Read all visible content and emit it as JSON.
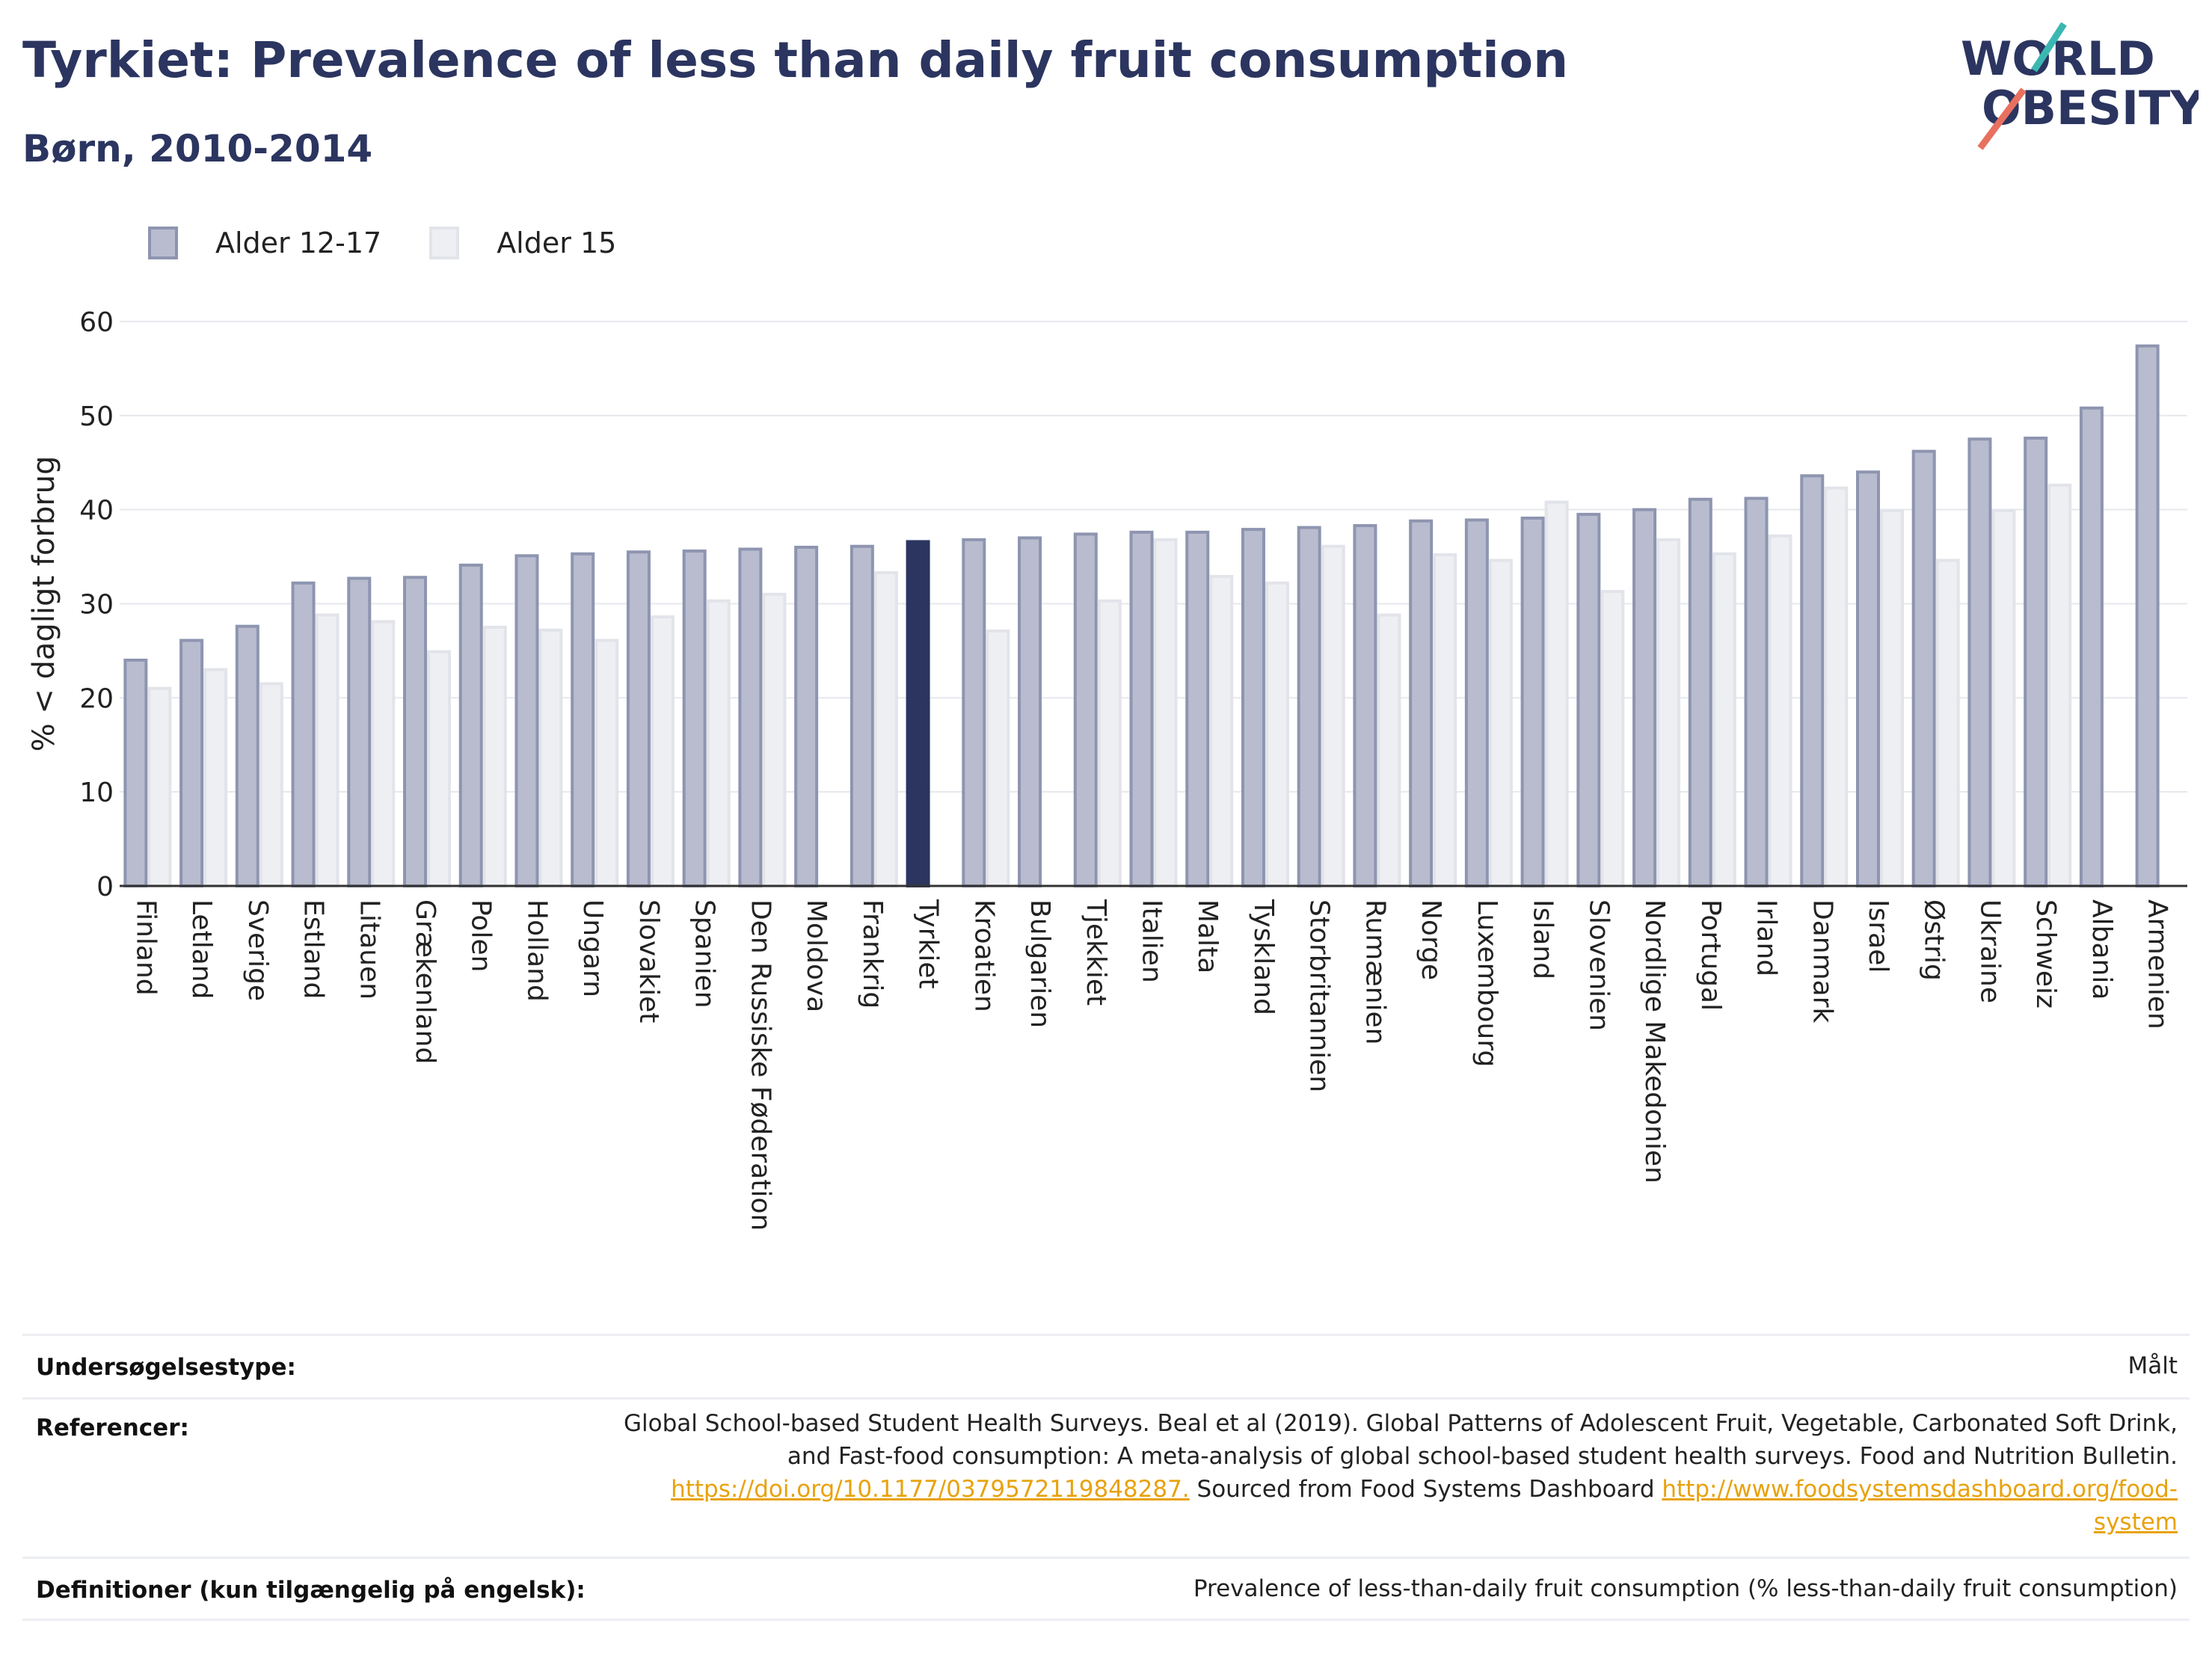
{
  "header": {
    "title": "Tyrkiet: Prevalence of less than daily fruit consumption",
    "subtitle": "Børn, 2010-2014"
  },
  "logo": {
    "line1": "WORLD",
    "line2": "OBESITY"
  },
  "colors": {
    "series1_fill": "#b8bcce",
    "series1_stroke": "#8e95b0",
    "series2_fill": "#eeeff3",
    "series2_stroke": "#e2e4ea",
    "highlight": "#2b3560",
    "title": "#2b3560",
    "link": "#e8a20c"
  },
  "chart_data": {
    "type": "bar",
    "ylabel": "% < dagligt forbrug",
    "ylim": [
      0,
      60
    ],
    "yticks": [
      0,
      10,
      20,
      30,
      40,
      50,
      60
    ],
    "grid": true,
    "legend_position": "top-left",
    "highlight_category": "Tyrkiet",
    "categories": [
      "Finland",
      "Letland",
      "Sverige",
      "Estland",
      "Litauen",
      "Grækenland",
      "Polen",
      "Holland",
      "Ungarn",
      "Slovakiet",
      "Spanien",
      "Den Russiske Føderation",
      "Moldova",
      "Frankrig",
      "Tyrkiet",
      "Kroatien",
      "Bulgarien",
      "Tjekkiet",
      "Italien",
      "Malta",
      "Tyskland",
      "Storbritannien",
      "Rumænien",
      "Norge",
      "Luxembourg",
      "Island",
      "Slovenien",
      "Nordlige Makedonien",
      "Portugal",
      "Irland",
      "Danmark",
      "Israel",
      "Østrig",
      "Ukraine",
      "Schweiz",
      "Albania",
      "Armenien"
    ],
    "series": [
      {
        "name": "Alder 12-17",
        "values": [
          24.0,
          26.1,
          27.6,
          32.2,
          32.7,
          32.8,
          34.1,
          35.1,
          35.3,
          35.5,
          35.6,
          35.8,
          36.0,
          36.1,
          36.6,
          36.8,
          37.0,
          37.4,
          37.6,
          37.6,
          37.9,
          38.1,
          38.3,
          38.8,
          38.9,
          39.1,
          39.5,
          40.0,
          41.1,
          41.2,
          43.6,
          44.0,
          46.2,
          47.5,
          47.6,
          50.8,
          57.4
        ]
      },
      {
        "name": "Alder 15",
        "values": [
          21.0,
          23.0,
          21.5,
          28.8,
          28.1,
          24.9,
          27.5,
          27.2,
          26.1,
          28.6,
          30.3,
          31.0,
          null,
          33.3,
          null,
          27.1,
          null,
          30.3,
          36.8,
          32.9,
          32.2,
          36.1,
          28.8,
          35.2,
          34.6,
          40.8,
          31.3,
          36.8,
          35.3,
          37.2,
          42.3,
          39.9,
          34.6,
          39.9,
          42.6,
          null,
          null
        ]
      }
    ]
  },
  "footer": {
    "rows": [
      {
        "label": "Undersøgelsestype:",
        "value": "Målt"
      },
      {
        "label": "Referencer:",
        "lines": [
          [
            {
              "text": "Global School-based Student Health Surveys. Beal et al (2019). Global Patterns of Adolescent Fruit, Vegetable, Carbonated Soft Drink,"
            }
          ],
          [
            {
              "text": "and Fast-food consumption: A meta-analysis of global school-based student health surveys. Food and Nutrition Bulletin."
            }
          ],
          [
            {
              "text": "https://doi.org/10.1177/0379572119848287.",
              "link": true
            },
            {
              "text": " Sourced from Food Systems Dashboard "
            },
            {
              "text": "http://www.foodsystemsdashboard.org/food-",
              "link": true
            }
          ],
          [
            {
              "text": "system",
              "link": true
            }
          ]
        ]
      },
      {
        "label": "Definitioner (kun tilgængelig på engelsk):",
        "value": "Prevalence of less-than-daily fruit consumption (% less-than-daily fruit consumption)"
      }
    ]
  }
}
